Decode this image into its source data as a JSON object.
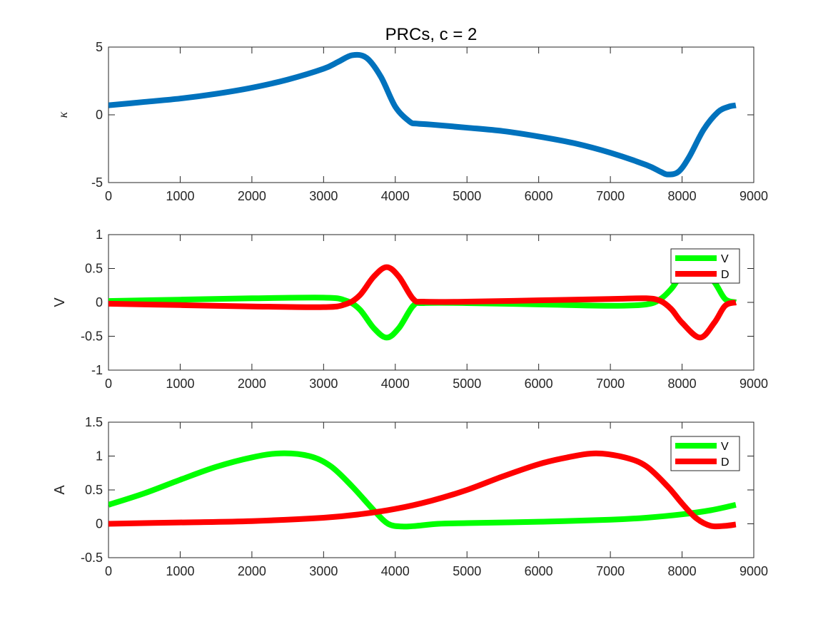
{
  "chart_data": [
    {
      "type": "line",
      "title": "PRCs, c = 2",
      "xlabel": "",
      "ylabel": "κ",
      "xlim": [
        0,
        9000
      ],
      "ylim": [
        -5,
        5
      ],
      "xticks": [
        0,
        1000,
        2000,
        3000,
        4000,
        5000,
        6000,
        7000,
        8000,
        9000
      ],
      "yticks": [
        -5,
        0,
        5
      ],
      "grid": false,
      "legend": null,
      "series": [
        {
          "color": "#0072BD",
          "x": [
            0,
            500,
            1000,
            1500,
            2000,
            2500,
            3000,
            3200,
            3400,
            3600,
            3800,
            4000,
            4200,
            4300,
            4500,
            5000,
            5500,
            6000,
            6500,
            7000,
            7500,
            7700,
            7800,
            7950,
            8100,
            8300,
            8500,
            8650,
            8750
          ],
          "y": [
            0.7,
            0.95,
            1.2,
            1.55,
            2.0,
            2.6,
            3.4,
            3.9,
            4.4,
            4.2,
            2.8,
            0.6,
            -0.5,
            -0.65,
            -0.72,
            -0.95,
            -1.2,
            -1.6,
            -2.1,
            -2.8,
            -3.7,
            -4.2,
            -4.4,
            -4.2,
            -3.1,
            -1.1,
            0.2,
            0.6,
            0.7
          ]
        }
      ]
    },
    {
      "type": "line",
      "title": "",
      "xlabel": "",
      "ylabel": "V",
      "xlim": [
        0,
        9000
      ],
      "ylim": [
        -1,
        1
      ],
      "xticks": [
        0,
        1000,
        2000,
        3000,
        4000,
        5000,
        6000,
        7000,
        8000,
        9000
      ],
      "yticks": [
        -1,
        -0.5,
        0,
        0.5,
        1
      ],
      "grid": false,
      "legend": "top-right",
      "series": [
        {
          "name": "V",
          "color": "#00FF00",
          "x": [
            0,
            1000,
            2000,
            3000,
            3300,
            3500,
            3700,
            3880,
            4050,
            4250,
            4400,
            5000,
            6000,
            7000,
            7500,
            7700,
            7850,
            8000,
            8250,
            8450,
            8600,
            8750
          ],
          "y": [
            0.02,
            0.04,
            0.06,
            0.07,
            0.03,
            -0.1,
            -0.38,
            -0.52,
            -0.38,
            -0.05,
            -0.01,
            -0.01,
            -0.03,
            -0.05,
            -0.03,
            0.05,
            0.2,
            0.4,
            0.52,
            0.3,
            0.05,
            0.0
          ]
        },
        {
          "name": "D",
          "color": "#FF0000",
          "x": [
            0,
            1000,
            2000,
            3000,
            3300,
            3500,
            3700,
            3880,
            4050,
            4250,
            4400,
            5000,
            6000,
            7000,
            7500,
            7700,
            7850,
            8000,
            8250,
            8450,
            8600,
            8750
          ],
          "y": [
            -0.02,
            -0.04,
            -0.06,
            -0.07,
            -0.03,
            0.1,
            0.38,
            0.52,
            0.38,
            0.05,
            0.01,
            0.01,
            0.03,
            0.05,
            0.06,
            0.02,
            -0.1,
            -0.3,
            -0.52,
            -0.3,
            -0.05,
            0.0
          ]
        }
      ]
    },
    {
      "type": "line",
      "title": "",
      "xlabel": "",
      "ylabel": "A",
      "xlim": [
        0,
        9000
      ],
      "ylim": [
        -0.5,
        1.5
      ],
      "xticks": [
        0,
        1000,
        2000,
        3000,
        4000,
        5000,
        6000,
        7000,
        8000,
        9000
      ],
      "yticks": [
        -0.5,
        0,
        0.5,
        1,
        1.5
      ],
      "grid": false,
      "legend": "top-right",
      "series": [
        {
          "name": "V",
          "color": "#00FF00",
          "x": [
            0,
            500,
            1000,
            1500,
            2000,
            2400,
            2800,
            3100,
            3400,
            3700,
            3900,
            4100,
            4300,
            4600,
            5000,
            6000,
            7000,
            7500,
            8000,
            8400,
            8750
          ],
          "y": [
            0.28,
            0.45,
            0.65,
            0.84,
            0.98,
            1.04,
            1.0,
            0.85,
            0.55,
            0.2,
            0.0,
            -0.04,
            -0.03,
            0.0,
            0.01,
            0.03,
            0.06,
            0.09,
            0.14,
            0.2,
            0.28
          ]
        },
        {
          "name": "D",
          "color": "#FF0000",
          "x": [
            0,
            1000,
            2000,
            3000,
            3500,
            4000,
            4500,
            5000,
            5500,
            6000,
            6400,
            6800,
            7200,
            7500,
            7800,
            8000,
            8200,
            8400,
            8600,
            8750
          ],
          "y": [
            0.0,
            0.02,
            0.04,
            0.09,
            0.14,
            0.22,
            0.34,
            0.5,
            0.7,
            0.88,
            0.98,
            1.04,
            0.98,
            0.85,
            0.55,
            0.3,
            0.08,
            -0.03,
            -0.03,
            -0.01
          ]
        }
      ]
    }
  ]
}
